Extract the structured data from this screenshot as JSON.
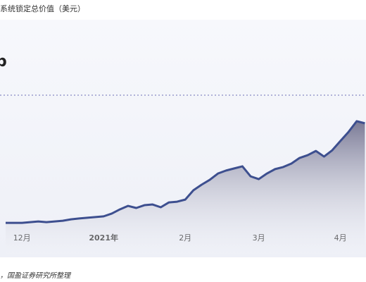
{
  "chart_data": {
    "type": "line",
    "title": "系统锁定总价值（美元）",
    "annotation": "b",
    "source": "，国盈证券研究所整理",
    "categories": [
      null,
      null,
      "12月",
      null,
      null,
      null,
      null,
      null,
      null,
      null,
      null,
      null,
      "2021年",
      null,
      null,
      null,
      null,
      null,
      null,
      null,
      null,
      null,
      "2月",
      null,
      null,
      null,
      null,
      null,
      null,
      null,
      null,
      "3月",
      null,
      null,
      null,
      null,
      null,
      null,
      null,
      null,
      null,
      "4月",
      null,
      null,
      null
    ],
    "series": [
      {
        "color": "#3d4f8f",
        "values": [
          13.3,
          13.3,
          13.3,
          13.6,
          13.9,
          13.6,
          13.9,
          14.2,
          14.8,
          15.2,
          15.5,
          15.8,
          16.1,
          17.3,
          19.1,
          20.6,
          19.7,
          20.9,
          21.2,
          20.0,
          22.1,
          22.4,
          23.3,
          27.3,
          29.7,
          31.8,
          34.5,
          35.8,
          36.7,
          37.6,
          33.3,
          32.1,
          34.5,
          36.4,
          37.3,
          38.8,
          41.2,
          42.4,
          44.2,
          41.8,
          44.5,
          48.5,
          52.4,
          57.0,
          56.1
        ]
      }
    ],
    "ylim": [
      0,
      100
    ]
  }
}
